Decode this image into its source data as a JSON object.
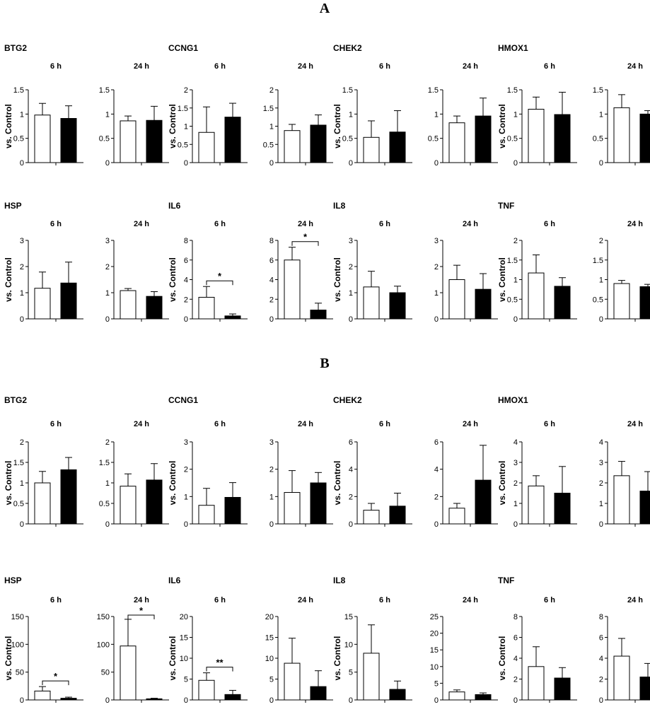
{
  "panel_labels": [
    "A",
    "B"
  ],
  "chart_data": [
    {
      "type": "bar",
      "panel": "A",
      "gene": "BTG2",
      "ylabel": "vs. Control",
      "charts": [
        {
          "time": "6 h",
          "ylim": [
            0,
            1.5
          ],
          "yticks": [
            "0",
            "0.5",
            "1",
            "1.5"
          ],
          "values": [
            0.98,
            0.91
          ],
          "errors": [
            0.24,
            0.26
          ],
          "sig": ""
        },
        {
          "time": "24 h",
          "ylim": [
            0,
            1.5
          ],
          "yticks": [
            "0",
            "0.5",
            "1",
            "1.5"
          ],
          "values": [
            0.86,
            0.87
          ],
          "errors": [
            0.1,
            0.29
          ],
          "sig": ""
        }
      ]
    },
    {
      "type": "bar",
      "panel": "A",
      "gene": "CCNG1",
      "ylabel": "vs. Control",
      "charts": [
        {
          "time": "6 h",
          "ylim": [
            0,
            2
          ],
          "yticks": [
            "0",
            "0.5",
            "1",
            "1.5",
            "2"
          ],
          "values": [
            0.83,
            1.25
          ],
          "errors": [
            0.7,
            0.38
          ],
          "sig": ""
        },
        {
          "time": "24 h",
          "ylim": [
            0,
            2
          ],
          "yticks": [
            "0",
            "0.5",
            "1",
            "1.5",
            "2"
          ],
          "values": [
            0.88,
            1.03
          ],
          "errors": [
            0.17,
            0.28
          ],
          "sig": ""
        }
      ]
    },
    {
      "type": "bar",
      "panel": "A",
      "gene": "CHEK2",
      "ylabel": "vs. Control",
      "charts": [
        {
          "time": "6 h",
          "ylim": [
            0,
            1.5
          ],
          "yticks": [
            "0",
            "0.5",
            "1",
            "1.5"
          ],
          "values": [
            0.52,
            0.63
          ],
          "errors": [
            0.34,
            0.44
          ],
          "sig": ""
        },
        {
          "time": "24 h",
          "ylim": [
            0,
            1.5
          ],
          "yticks": [
            "0",
            "0.5",
            "1",
            "1.5"
          ],
          "values": [
            0.82,
            0.96
          ],
          "errors": [
            0.14,
            0.37
          ],
          "sig": ""
        }
      ]
    },
    {
      "type": "bar",
      "panel": "A",
      "gene": "HMOX1",
      "ylabel": "vs. Control",
      "charts": [
        {
          "time": "6 h",
          "ylim": [
            0,
            1.5
          ],
          "yticks": [
            "0",
            "0.5",
            "1",
            "1.5"
          ],
          "values": [
            1.1,
            0.99
          ],
          "errors": [
            0.25,
            0.46
          ],
          "sig": ""
        },
        {
          "time": "24 h",
          "ylim": [
            0,
            1.5
          ],
          "yticks": [
            "0",
            "0.5",
            "1",
            "1.5"
          ],
          "values": [
            1.13,
            1.0
          ],
          "errors": [
            0.27,
            0.07
          ],
          "sig": ""
        }
      ]
    },
    {
      "type": "bar",
      "panel": "A",
      "gene": "HSP",
      "ylabel": "vs. Control",
      "charts": [
        {
          "time": "6 h",
          "ylim": [
            0,
            3
          ],
          "yticks": [
            "0",
            "1",
            "2",
            "3"
          ],
          "values": [
            1.17,
            1.37
          ],
          "errors": [
            0.62,
            0.8
          ],
          "sig": ""
        },
        {
          "time": "24 h",
          "ylim": [
            0,
            3
          ],
          "yticks": [
            "0",
            "1",
            "2",
            "3"
          ],
          "values": [
            1.08,
            0.86
          ],
          "errors": [
            0.08,
            0.18
          ],
          "sig": ""
        }
      ]
    },
    {
      "type": "bar",
      "panel": "A",
      "gene": "IL6",
      "ylabel": "vs. Control",
      "charts": [
        {
          "time": "6 h",
          "ylim": [
            0,
            8
          ],
          "yticks": [
            "0",
            "2",
            "4",
            "6",
            "8"
          ],
          "values": [
            2.2,
            0.3
          ],
          "errors": [
            1.1,
            0.2
          ],
          "sig": "*"
        },
        {
          "time": "24 h",
          "ylim": [
            0,
            8
          ],
          "yticks": [
            "0",
            "2",
            "4",
            "6",
            "8"
          ],
          "values": [
            6.0,
            0.9
          ],
          "errors": [
            1.3,
            0.7
          ],
          "sig": "*"
        }
      ]
    },
    {
      "type": "bar",
      "panel": "A",
      "gene": "IL8",
      "ylabel": "vs. Control",
      "charts": [
        {
          "time": "6 h",
          "ylim": [
            0,
            3
          ],
          "yticks": [
            "0",
            "1",
            "2",
            "3"
          ],
          "values": [
            1.22,
            1.0
          ],
          "errors": [
            0.6,
            0.25
          ],
          "sig": ""
        },
        {
          "time": "24 h",
          "ylim": [
            0,
            3
          ],
          "yticks": [
            "0",
            "1",
            "2",
            "3"
          ],
          "values": [
            1.5,
            1.13
          ],
          "errors": [
            0.55,
            0.6
          ],
          "sig": ""
        }
      ]
    },
    {
      "type": "bar",
      "panel": "A",
      "gene": "TNF",
      "ylabel": "vs. Control",
      "charts": [
        {
          "time": "6 h",
          "ylim": [
            0,
            2
          ],
          "yticks": [
            "0",
            "0.5",
            "1",
            "1.5",
            "2"
          ],
          "values": [
            1.17,
            0.83
          ],
          "errors": [
            0.46,
            0.22
          ],
          "sig": ""
        },
        {
          "time": "24 h",
          "ylim": [
            0,
            2
          ],
          "yticks": [
            "0",
            "0.5",
            "1",
            "1.5",
            "2"
          ],
          "values": [
            0.9,
            0.82
          ],
          "errors": [
            0.08,
            0.06
          ],
          "sig": ""
        }
      ]
    },
    {
      "type": "bar",
      "panel": "B",
      "gene": "BTG2",
      "ylabel": "vs. Control",
      "charts": [
        {
          "time": "6 h",
          "ylim": [
            0,
            2
          ],
          "yticks": [
            "0",
            "0.5",
            "1",
            "1.5",
            "2"
          ],
          "values": [
            1.0,
            1.32
          ],
          "errors": [
            0.28,
            0.3
          ],
          "sig": ""
        },
        {
          "time": "24 h",
          "ylim": [
            0,
            2
          ],
          "yticks": [
            "0",
            "0.5",
            "1",
            "1.5",
            "2"
          ],
          "values": [
            0.92,
            1.07
          ],
          "errors": [
            0.3,
            0.4
          ],
          "sig": ""
        }
      ]
    },
    {
      "type": "bar",
      "panel": "B",
      "gene": "CCNG1",
      "ylabel": "vs. Control",
      "charts": [
        {
          "time": "6 h",
          "ylim": [
            0,
            3
          ],
          "yticks": [
            "0",
            "1",
            "2",
            "3"
          ],
          "values": [
            0.68,
            0.97
          ],
          "errors": [
            0.62,
            0.54
          ],
          "sig": ""
        },
        {
          "time": "24 h",
          "ylim": [
            0,
            3
          ],
          "yticks": [
            "0",
            "1",
            "2",
            "3"
          ],
          "values": [
            1.15,
            1.5
          ],
          "errors": [
            0.8,
            0.38
          ],
          "sig": ""
        }
      ]
    },
    {
      "type": "bar",
      "panel": "B",
      "gene": "CHEK2",
      "ylabel": "vs. Control",
      "charts": [
        {
          "time": "6 h",
          "ylim": [
            0,
            6
          ],
          "yticks": [
            "0",
            "2",
            "4",
            "6"
          ],
          "values": [
            1.0,
            1.3
          ],
          "errors": [
            0.5,
            0.95
          ],
          "sig": ""
        },
        {
          "time": "24 h",
          "ylim": [
            0,
            6
          ],
          "yticks": [
            "0",
            "2",
            "4",
            "6"
          ],
          "values": [
            1.15,
            3.2
          ],
          "errors": [
            0.35,
            2.55
          ],
          "sig": ""
        }
      ]
    },
    {
      "type": "bar",
      "panel": "B",
      "gene": "HMOX1",
      "ylabel": "vs. Control",
      "charts": [
        {
          "time": "6 h",
          "ylim": [
            0,
            4
          ],
          "yticks": [
            "0",
            "1",
            "2",
            "3",
            "4"
          ],
          "values": [
            1.85,
            1.5
          ],
          "errors": [
            0.5,
            1.3
          ],
          "sig": ""
        },
        {
          "time": "24 h",
          "ylim": [
            0,
            4
          ],
          "yticks": [
            "0",
            "1",
            "2",
            "3",
            "4"
          ],
          "values": [
            2.35,
            1.6
          ],
          "errors": [
            0.7,
            0.95
          ],
          "sig": ""
        }
      ]
    },
    {
      "type": "bar",
      "panel": "B",
      "gene": "HSP",
      "ylabel": "vs. Control",
      "charts": [
        {
          "time": "6 h",
          "ylim": [
            0,
            150
          ],
          "yticks": [
            "0",
            "50",
            "100",
            "150"
          ],
          "values": [
            16,
            3
          ],
          "errors": [
            8,
            2
          ],
          "sig": "*"
        },
        {
          "time": "24 h",
          "ylim": [
            0,
            150
          ],
          "yticks": [
            "0",
            "50",
            "100",
            "150"
          ],
          "values": [
            97,
            2
          ],
          "errors": [
            48,
            1
          ],
          "sig": "*"
        }
      ]
    },
    {
      "type": "bar",
      "panel": "B",
      "gene": "IL6",
      "ylabel": "vs. Control",
      "charts": [
        {
          "time": "6 h",
          "ylim": [
            0,
            20
          ],
          "yticks": [
            "0",
            "5",
            "10",
            "15",
            "20"
          ],
          "values": [
            4.7,
            1.3
          ],
          "errors": [
            1.8,
            1.0
          ],
          "sig": "**"
        },
        {
          "time": "24 h",
          "ylim": [
            0,
            20
          ],
          "yticks": [
            "0",
            "5",
            "10",
            "15",
            "20"
          ],
          "values": [
            8.8,
            3.2
          ],
          "errors": [
            6.0,
            3.8
          ],
          "sig": ""
        }
      ]
    },
    {
      "type": "bar",
      "panel": "B",
      "gene": "IL8",
      "ylabel": "vs. Control",
      "charts": [
        {
          "time": "6 h",
          "ylim": [
            0,
            15
          ],
          "yticks": [
            "0",
            "5",
            "10",
            "15"
          ],
          "values": [
            8.4,
            1.9
          ],
          "errors": [
            5.1,
            1.5
          ],
          "sig": ""
        },
        {
          "time": "24 h",
          "ylim": [
            0,
            25
          ],
          "yticks": [
            "0",
            "5",
            "10",
            "15",
            "20",
            "25"
          ],
          "values": [
            2.4,
            1.6
          ],
          "errors": [
            0.6,
            0.5
          ],
          "sig": ""
        }
      ]
    },
    {
      "type": "bar",
      "panel": "B",
      "gene": "TNF",
      "ylabel": "vs. Control",
      "charts": [
        {
          "time": "6 h",
          "ylim": [
            0,
            8
          ],
          "yticks": [
            "0",
            "2",
            "4",
            "6",
            "8"
          ],
          "values": [
            3.2,
            2.1
          ],
          "errors": [
            1.9,
            1.0
          ],
          "sig": ""
        },
        {
          "time": "24 h",
          "ylim": [
            0,
            8
          ],
          "yticks": [
            "0",
            "2",
            "4",
            "6",
            "8"
          ],
          "values": [
            4.2,
            2.2
          ],
          "errors": [
            1.7,
            1.3
          ],
          "sig": ""
        }
      ]
    }
  ]
}
